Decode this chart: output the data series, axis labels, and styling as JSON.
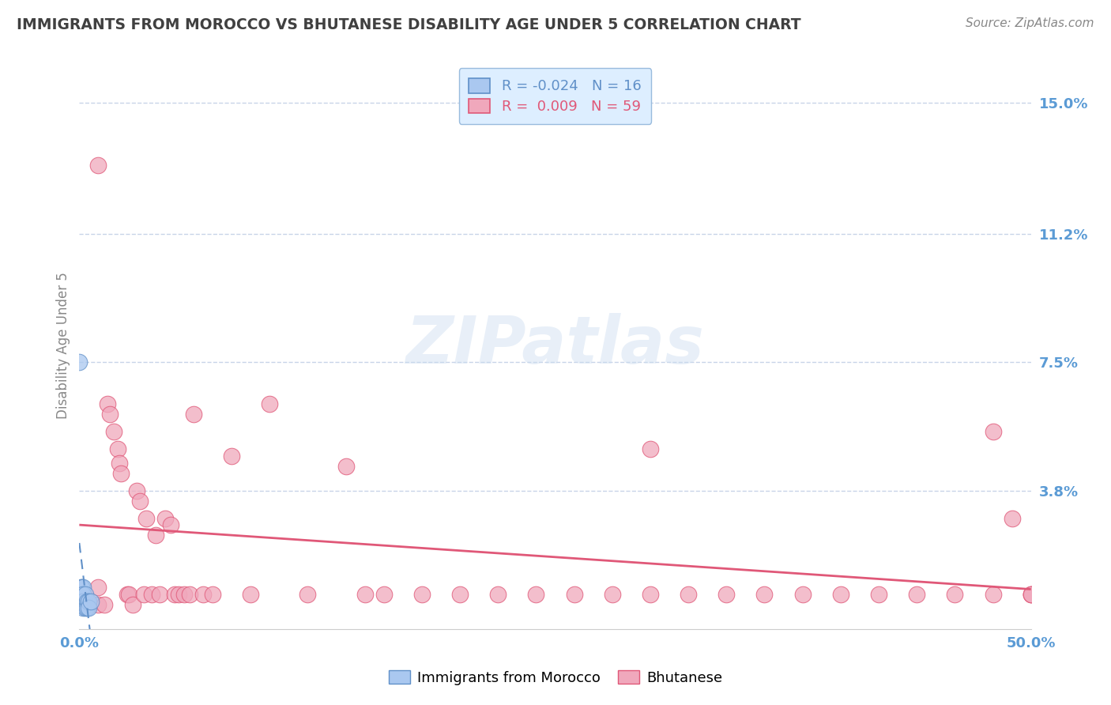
{
  "title": "IMMIGRANTS FROM MOROCCO VS BHUTANESE DISABILITY AGE UNDER 5 CORRELATION CHART",
  "source": "Source: ZipAtlas.com",
  "ylabel": "Disability Age Under 5",
  "xlim": [
    0,
    0.5
  ],
  "ylim": [
    -0.002,
    0.162
  ],
  "ytick_positions": [
    0.038,
    0.075,
    0.112,
    0.15
  ],
  "ytick_labels": [
    "3.8%",
    "7.5%",
    "11.2%",
    "15.0%"
  ],
  "axis_label_color": "#5b9bd5",
  "grid_color": "#c8d4e8",
  "background_color": "#ffffff",
  "color_morocco": "#aac8f0",
  "color_bhutanese": "#f0a8bc",
  "color_trend_morocco": "#6090c8",
  "color_trend_bhutanese": "#e05878",
  "title_color": "#404040",
  "morocco_x": [
    0.0,
    0.001,
    0.001,
    0.001,
    0.001,
    0.002,
    0.002,
    0.002,
    0.002,
    0.003,
    0.003,
    0.004,
    0.004,
    0.005,
    0.005,
    0.006
  ],
  "morocco_y": [
    0.075,
    0.01,
    0.01,
    0.008,
    0.006,
    0.01,
    0.008,
    0.006,
    0.004,
    0.008,
    0.004,
    0.006,
    0.004,
    0.006,
    0.004,
    0.006
  ],
  "bhutanese_x": [
    0.005,
    0.01,
    0.01,
    0.013,
    0.015,
    0.016,
    0.018,
    0.02,
    0.021,
    0.022,
    0.025,
    0.026,
    0.028,
    0.03,
    0.032,
    0.034,
    0.035,
    0.038,
    0.04,
    0.042,
    0.045,
    0.048,
    0.05,
    0.052,
    0.055,
    0.058,
    0.06,
    0.065,
    0.07,
    0.08,
    0.09,
    0.1,
    0.12,
    0.14,
    0.15,
    0.16,
    0.18,
    0.2,
    0.22,
    0.24,
    0.26,
    0.28,
    0.3,
    0.32,
    0.34,
    0.36,
    0.38,
    0.4,
    0.42,
    0.44,
    0.46,
    0.48,
    0.49,
    0.5,
    0.5,
    0.48,
    0.3,
    0.5,
    0.01
  ],
  "bhutanese_y": [
    0.005,
    0.01,
    0.005,
    0.005,
    0.063,
    0.06,
    0.055,
    0.05,
    0.046,
    0.043,
    0.008,
    0.008,
    0.005,
    0.038,
    0.035,
    0.008,
    0.03,
    0.008,
    0.025,
    0.008,
    0.03,
    0.028,
    0.008,
    0.008,
    0.008,
    0.008,
    0.06,
    0.008,
    0.008,
    0.048,
    0.008,
    0.063,
    0.008,
    0.045,
    0.008,
    0.008,
    0.008,
    0.008,
    0.008,
    0.008,
    0.008,
    0.008,
    0.05,
    0.008,
    0.008,
    0.008,
    0.008,
    0.008,
    0.008,
    0.008,
    0.008,
    0.008,
    0.03,
    0.008,
    0.008,
    0.055,
    0.008,
    0.008,
    0.132
  ],
  "watermark_text": "ZIPatlas",
  "legend_box_color": "#ddeeff",
  "legend_box_edge": "#99bbdd",
  "legend_r1": "R = -0.024",
  "legend_n1": "N = 16",
  "legend_r2": "R =  0.009",
  "legend_n2": "N = 59"
}
